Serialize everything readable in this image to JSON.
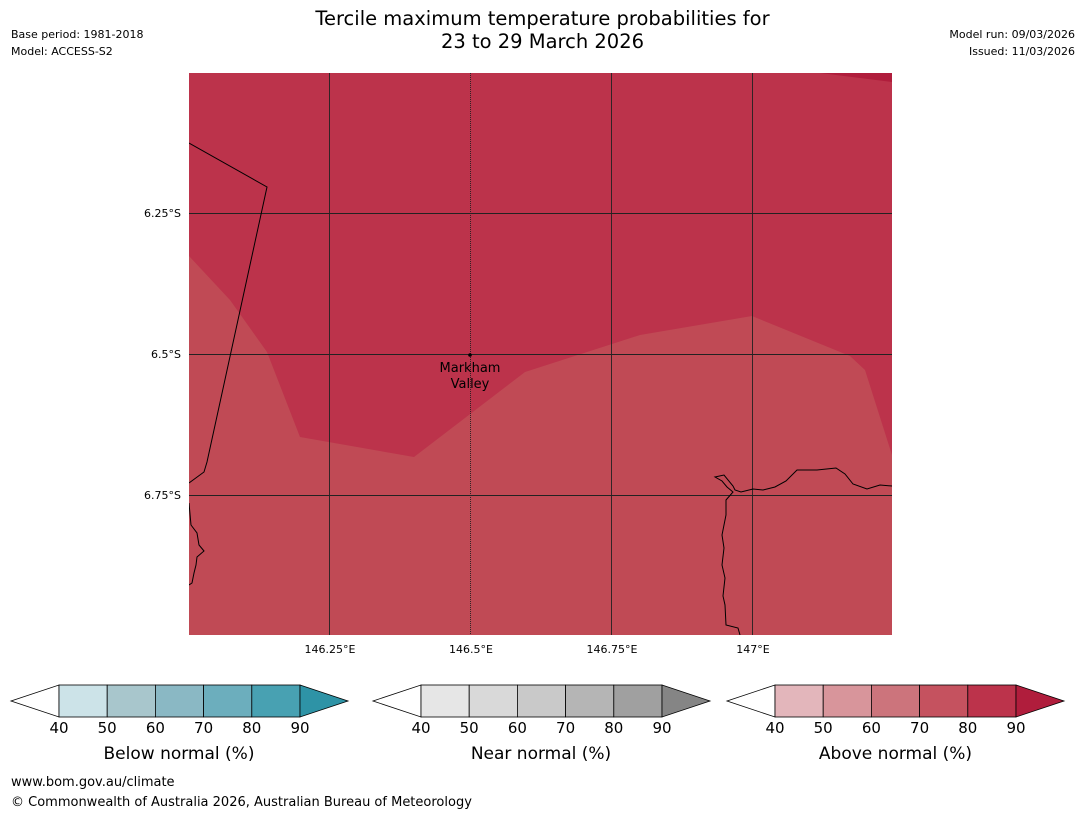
{
  "header": {
    "title_line1": "Tercile maximum temperature probabilities for",
    "title_line2": "23 to 29 March 2026",
    "base_period": "Base period: 1981-2018",
    "model": "Model: ACCESS-S2",
    "model_run": "Model run: 09/03/2026",
    "issued": "Issued: 11/03/2026"
  },
  "map": {
    "lat_labels": [
      "6.25°S",
      "6.5°S",
      "6.75°S"
    ],
    "lon_labels": [
      "146.25°E",
      "146.5°E",
      "146.75°E",
      "147°E"
    ],
    "place": {
      "name_line1": "Markham",
      "name_line2": "Valley",
      "lon": 146.5,
      "lat": -6.5
    },
    "fill_colors": {
      "above_80_90": "#bc334b",
      "above_70_80": "#c04a55"
    },
    "coastline_color": "#000000",
    "grid_color": "#222222"
  },
  "colorbars": [
    {
      "label": "Below normal (%)",
      "ticks": [
        "40",
        "50",
        "60",
        "70",
        "80",
        "90"
      ],
      "colors": [
        "#cce3e8",
        "#a8c6cc",
        "#8ab8c4",
        "#6caebd",
        "#48a1b2",
        "#2e93a6"
      ]
    },
    {
      "label": "Near normal (%)",
      "ticks": [
        "40",
        "50",
        "60",
        "70",
        "80",
        "90"
      ],
      "colors": [
        "#e6e6e6",
        "#d9d9d9",
        "#c9c9c9",
        "#b5b5b5",
        "#a0a0a0",
        "#858585"
      ]
    },
    {
      "label": "Above normal (%)",
      "ticks": [
        "40",
        "50",
        "60",
        "70",
        "80",
        "90"
      ],
      "colors": [
        "#e3b6bb",
        "#d8959b",
        "#cc747c",
        "#c5525f",
        "#bc334b",
        "#b01d3c"
      ]
    }
  ],
  "footer": {
    "url": "www.bom.gov.au/climate",
    "copyright": "© Commonwealth of Australia 2026, Australian Bureau of Meteorology"
  }
}
